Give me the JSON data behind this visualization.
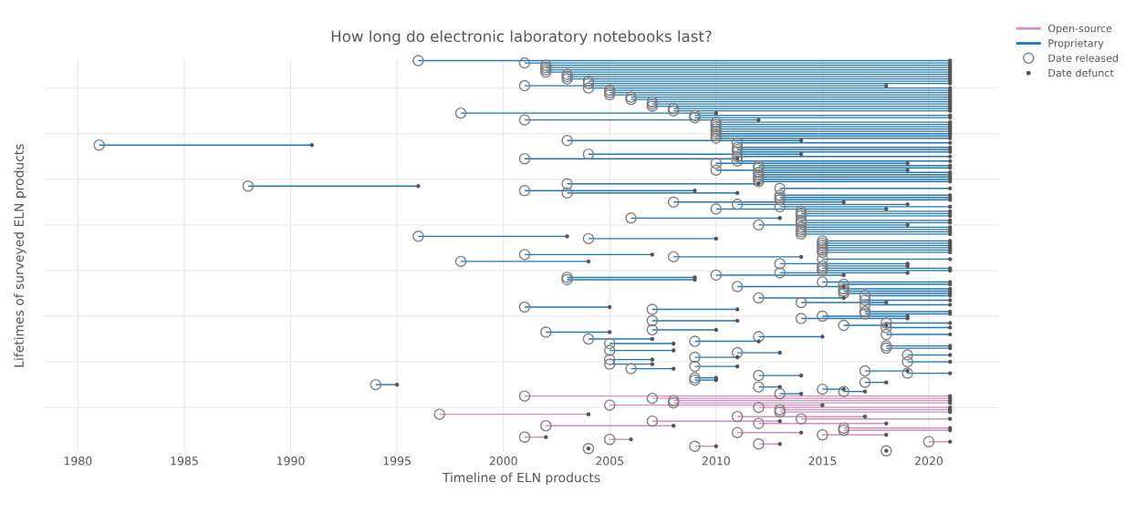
{
  "chart_data": {
    "type": "bar",
    "orientation": "horizontal",
    "title": "How long do electronic laboratory notebooks last?",
    "xlabel": "Timeline of ELN products",
    "ylabel": "Lifetimes of surveyed ELN products",
    "xlim": [
      1978.4,
      2023.3
    ],
    "xticks": [
      1980,
      1985,
      1990,
      1995,
      2000,
      2005,
      2010,
      2015,
      2020
    ],
    "grid": true,
    "legend": "top right",
    "tick_labels": "x",
    "categories": [
      null,
      null,
      null,
      null,
      null,
      null,
      null,
      null,
      null,
      null,
      null,
      null,
      null,
      null,
      null,
      null,
      null,
      null,
      null,
      null,
      null,
      null,
      null,
      null,
      null,
      null,
      null,
      null,
      null,
      null,
      null,
      null,
      null,
      null,
      null,
      null,
      null,
      null,
      null,
      null,
      null,
      null,
      null,
      null,
      null,
      null,
      null,
      null,
      null,
      null,
      null,
      null,
      null,
      null,
      null,
      null,
      null,
      null,
      null,
      null,
      null,
      null,
      null,
      null,
      null,
      null,
      null,
      null,
      null,
      null,
      null,
      null,
      null,
      null,
      null,
      null,
      null,
      null,
      null,
      null,
      null,
      null,
      null,
      null,
      null,
      null,
      null,
      null,
      null,
      null,
      null,
      null,
      null,
      null,
      null,
      null,
      null,
      null,
      null,
      null,
      null,
      null,
      null,
      null,
      null,
      null,
      null,
      null,
      null,
      null,
      null,
      null,
      null,
      null,
      null,
      null,
      null,
      null,
      null,
      null,
      null,
      null,
      null,
      null,
      null,
      null,
      null,
      null,
      null,
      null,
      null,
      null,
      null,
      null,
      null,
      null,
      null,
      null,
      null,
      null,
      null,
      null,
      null,
      null,
      null,
      null,
      null,
      null,
      null,
      null,
      null,
      null,
      null,
      null,
      null,
      null,
      null,
      null,
      null,
      null,
      null,
      null,
      null,
      null,
      null,
      null,
      null,
      null,
      null,
      null,
      null,
      null
    ],
    "series": [
      {
        "name": "Open-source",
        "color": "#d18fbd",
        "base": [
          null,
          null,
          null,
          null,
          null,
          null,
          null,
          null,
          null,
          null,
          null,
          null,
          null,
          null,
          null,
          null,
          null,
          null,
          null,
          null,
          null,
          null,
          null,
          null,
          null,
          null,
          null,
          null,
          null,
          null,
          null,
          null,
          null,
          null,
          null,
          null,
          null,
          null,
          null,
          null,
          null,
          null,
          null,
          null,
          null,
          null,
          null,
          null,
          null,
          null,
          null,
          null,
          null,
          null,
          null,
          null,
          null,
          null,
          null,
          null,
          null,
          null,
          null,
          null,
          null,
          null,
          null,
          null,
          null,
          null,
          null,
          null,
          null,
          null,
          null,
          null,
          null,
          null,
          null,
          null,
          null,
          null,
          null,
          null,
          null,
          null,
          null,
          null,
          null,
          null,
          null,
          null,
          null,
          null,
          null,
          null,
          null,
          null,
          null,
          null,
          null,
          null,
          null,
          null,
          null,
          null,
          null,
          null,
          null,
          null,
          null,
          null,
          null,
          null,
          null,
          null,
          null,
          null,
          null,
          null,
          null,
          null,
          null,
          null,
          null,
          null,
          null,
          null,
          null,
          null,
          null,
          null,
          null,
          null,
          null,
          null,
          null,
          null,
          null,
          null,
          null,
          null,
          null,
          null,
          null,
          null,
          null,
          2001,
          2007,
          2008,
          2008,
          2005,
          2012,
          2013,
          2013,
          1997,
          2011,
          2014,
          2007,
          2012,
          2002,
          2016,
          2016,
          2011,
          2015,
          2001,
          2005,
          2020,
          2012,
          2009,
          null,
          null
        ],
        "values": [
          null,
          null,
          null,
          null,
          null,
          null,
          null,
          null,
          null,
          null,
          null,
          null,
          null,
          null,
          null,
          null,
          null,
          null,
          null,
          null,
          null,
          null,
          null,
          null,
          null,
          null,
          null,
          null,
          null,
          null,
          null,
          null,
          null,
          null,
          null,
          null,
          null,
          null,
          null,
          null,
          null,
          null,
          null,
          null,
          null,
          null,
          null,
          null,
          null,
          null,
          null,
          null,
          null,
          null,
          null,
          null,
          null,
          null,
          null,
          null,
          null,
          null,
          null,
          null,
          null,
          null,
          null,
          null,
          null,
          null,
          null,
          null,
          null,
          null,
          null,
          null,
          null,
          null,
          null,
          null,
          null,
          null,
          null,
          null,
          null,
          null,
          null,
          null,
          null,
          null,
          null,
          null,
          null,
          null,
          null,
          null,
          null,
          null,
          null,
          null,
          null,
          null,
          null,
          null,
          null,
          null,
          null,
          null,
          null,
          null,
          null,
          null,
          null,
          null,
          null,
          null,
          null,
          null,
          null,
          null,
          null,
          null,
          null,
          null,
          null,
          null,
          null,
          null,
          null,
          null,
          null,
          null,
          null,
          null,
          null,
          null,
          null,
          null,
          null,
          null,
          null,
          null,
          null,
          null,
          null,
          null,
          null,
          20,
          14,
          13,
          13,
          10,
          9,
          8,
          8,
          7,
          6,
          7,
          6,
          6,
          6,
          5,
          5,
          3,
          3,
          1,
          1,
          1,
          1,
          1,
          null,
          null
        ]
      },
      {
        "name": "Proprietary",
        "color": "#1f77b4",
        "base": [
          1996,
          2001,
          2002,
          2002,
          2002,
          2002,
          2003,
          2003,
          2003,
          2004,
          2004,
          2001,
          2004,
          2005,
          2005,
          2005,
          2006,
          2006,
          2007,
          2007,
          2007,
          2008,
          2008,
          1998,
          2009,
          2009,
          2001,
          2010,
          2010,
          2010,
          2010,
          2010,
          2010,
          2010,
          2010,
          2003,
          2011,
          1981,
          2011,
          2011,
          2011,
          2004,
          2011,
          2001,
          2011,
          2010,
          2012,
          2012,
          2010,
          2012,
          2012,
          2012,
          2012,
          2012,
          2003,
          1988,
          2013,
          2001,
          2003,
          2013,
          2013,
          2013,
          2008,
          2011,
          2013,
          2010,
          2014,
          2014,
          2014,
          2006,
          2014,
          2014,
          2012,
          2014,
          2014,
          2014,
          2014,
          1996,
          2004,
          2015,
          2015,
          2015,
          2015,
          2015,
          2015,
          2001,
          2008,
          2015,
          1998,
          2013,
          2015,
          2015,
          2015,
          2013,
          2010,
          2003,
          2003,
          2015,
          2016,
          2011,
          2016,
          2016,
          2016,
          2017,
          2012,
          2017,
          2014,
          2017,
          2001,
          2007,
          2017,
          2017,
          2015,
          2014,
          2007,
          2018,
          2016,
          2018,
          2007,
          2002,
          2018,
          2012,
          2004,
          2009,
          2005,
          2018,
          2018,
          2005,
          2011,
          2019,
          2009,
          2005,
          2019,
          2005,
          2009,
          2006,
          2017,
          2019,
          2012,
          2009,
          2009,
          2017,
          1994,
          2012,
          2015,
          2016,
          2013,
          null,
          null,
          null,
          null,
          null,
          null,
          null,
          null,
          null,
          null,
          null,
          null,
          null,
          null,
          null,
          null,
          null,
          null,
          null,
          null,
          null,
          null,
          null,
          null,
          null
        ],
        "values": [
          25,
          20,
          19,
          19,
          19,
          19,
          18,
          18,
          18,
          17,
          17,
          17,
          17,
          16,
          16,
          16,
          15,
          15,
          14,
          14,
          14,
          13,
          13,
          12,
          12,
          12,
          11,
          11,
          11,
          11,
          11,
          11,
          11,
          11,
          11,
          11,
          10,
          10,
          10,
          10,
          10,
          10,
          10,
          10,
          10,
          9,
          9,
          9,
          9,
          9,
          9,
          9,
          9,
          9,
          9,
          8,
          8,
          8,
          8,
          8,
          8,
          8,
          8,
          8,
          8,
          8,
          7,
          7,
          7,
          7,
          7,
          7,
          7,
          7,
          7,
          7,
          7,
          7,
          6,
          6,
          6,
          6,
          6,
          6,
          6,
          6,
          6,
          6,
          6,
          6,
          4,
          6,
          6,
          6,
          6,
          6,
          6,
          6,
          5,
          5,
          5,
          5,
          5,
          4,
          4,
          4,
          4,
          4,
          4,
          4,
          4,
          4,
          4,
          5,
          4,
          3,
          2,
          3,
          3,
          3,
          3,
          3,
          3,
          3,
          3,
          3,
          3,
          3,
          2,
          2,
          2,
          2,
          2,
          2,
          2,
          2,
          2,
          2,
          2,
          1,
          1,
          1,
          1,
          1,
          1,
          1,
          1,
          null,
          null,
          null,
          null,
          null,
          null,
          null,
          null,
          null,
          null,
          null,
          null,
          null,
          null,
          null,
          null,
          null,
          null,
          null,
          null,
          null,
          null,
          null,
          null,
          null
        ]
      },
      {
        "name": "Date released",
        "type": "scatter",
        "marker": "circle",
        "color": "#7f7f7f",
        "values": [
          1996,
          2001,
          2002,
          2002,
          2002,
          2002,
          2003,
          2003,
          2003,
          2004,
          2004,
          2001,
          2004,
          2005,
          2005,
          2005,
          2006,
          2006,
          2007,
          2007,
          2007,
          2008,
          2008,
          1998,
          2009,
          2009,
          2001,
          2010,
          2010,
          2010,
          2010,
          2010,
          2010,
          2010,
          2010,
          2003,
          2011,
          1981,
          2011,
          2011,
          2011,
          2004,
          2011,
          2001,
          2011,
          2010,
          2012,
          2012,
          2010,
          2012,
          2012,
          2012,
          2012,
          2012,
          2003,
          1988,
          2013,
          2001,
          2003,
          2013,
          2013,
          2013,
          2008,
          2011,
          2013,
          2010,
          2014,
          2014,
          2014,
          2006,
          2014,
          2014,
          2012,
          2014,
          2014,
          2014,
          2014,
          1996,
          2004,
          2015,
          2015,
          2015,
          2015,
          2015,
          2015,
          2001,
          2008,
          2015,
          1998,
          2013,
          2015,
          2015,
          2015,
          2013,
          2010,
          2003,
          2003,
          2015,
          2016,
          2011,
          2016,
          2016,
          2016,
          2017,
          2012,
          2017,
          2014,
          2017,
          2001,
          2007,
          2017,
          2017,
          2015,
          2014,
          2007,
          2018,
          2016,
          2018,
          2007,
          2002,
          2018,
          2012,
          2004,
          2009,
          2005,
          2018,
          2018,
          2005,
          2011,
          2019,
          2009,
          2005,
          2019,
          2005,
          2009,
          2006,
          2017,
          2019,
          2012,
          2009,
          2009,
          2017,
          1994,
          2012,
          2015,
          2016,
          2013,
          2001,
          2007,
          2008,
          2008,
          2005,
          2012,
          2013,
          2013,
          1997,
          2011,
          2014,
          2007,
          2012,
          2002,
          2016,
          2016,
          2011,
          2015,
          2001,
          2005,
          2020,
          2012,
          2009,
          2004,
          2018
        ]
      },
      {
        "name": "Date defunct",
        "type": "scatter",
        "marker": "circle",
        "color": "#555555",
        "values": [
          2021,
          2021,
          2021,
          2021,
          2021,
          2021,
          2021,
          2021,
          2021,
          2021,
          2021,
          2018,
          2021,
          2021,
          2021,
          2021,
          2021,
          2021,
          2021,
          2021,
          2021,
          2021,
          2021,
          2010,
          2021,
          2021,
          2012,
          2021,
          2021,
          2021,
          2021,
          2021,
          2021,
          2021,
          2021,
          2014,
          2021,
          1991,
          2021,
          2021,
          2021,
          2014,
          2021,
          2011,
          2021,
          2019,
          2021,
          2021,
          2019,
          2021,
          2021,
          2021,
          2021,
          2021,
          2012,
          1996,
          2021,
          2009,
          2011,
          2021,
          2021,
          2021,
          2016,
          2019,
          2021,
          2018,
          2021,
          2021,
          2021,
          2013,
          2021,
          2021,
          2019,
          2021,
          2021,
          2021,
          2021,
          2003,
          2010,
          2021,
          2021,
          2021,
          2021,
          2021,
          2021,
          2007,
          2014,
          2021,
          2004,
          2019,
          2019,
          2021,
          2021,
          2019,
          2016,
          2009,
          2009,
          2021,
          2021,
          2016,
          2021,
          2021,
          2021,
          2021,
          2016,
          2021,
          2018,
          2021,
          2005,
          2011,
          2021,
          2021,
          2019,
          2019,
          2011,
          2021,
          2018,
          2021,
          2010,
          2005,
          2021,
          2015,
          2007,
          2012,
          2008,
          2021,
          2021,
          2008,
          2013,
          2021,
          2011,
          2007,
          2021,
          2007,
          2011,
          2008,
          2019,
          2021,
          2014,
          2010,
          2010,
          2018,
          1995,
          2013,
          2016,
          2017,
          2014,
          2021,
          2021,
          2021,
          2021,
          2015,
          2021,
          2021,
          2021,
          2004,
          2017,
          2021,
          2013,
          2018,
          2008,
          2021,
          2021,
          2014,
          2018,
          2002,
          2006,
          2021,
          2013,
          2010,
          2004,
          2018
        ]
      }
    ]
  }
}
